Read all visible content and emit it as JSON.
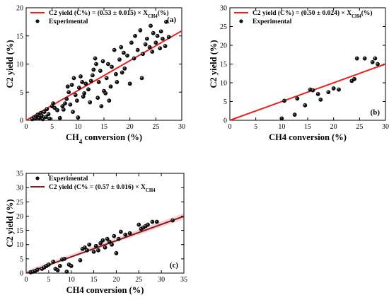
{
  "chart_data": [
    {
      "type": "scatter",
      "panel_label": "(a)",
      "xlabel": "CH",
      "xlabel_sub": "4",
      "xlabel_tail": " conversion (%)",
      "ylabel": "C2 yield (%)",
      "xlim": [
        0,
        30
      ],
      "ylim": [
        0,
        20
      ],
      "xticks": [
        0,
        5,
        10,
        15,
        20,
        25,
        30
      ],
      "yticks": [
        0,
        5,
        10,
        15,
        20
      ],
      "legend_position": "top-left",
      "fit": {
        "label": "C2 yield (C%) = (0.53 ± 0.015) × X",
        "label_sub": "CH4",
        "label_tail": "(%)",
        "slope": 0.53,
        "color": "#e8221f"
      },
      "scatter_label": "Experimental",
      "points": [
        [
          1.2,
          0.2
        ],
        [
          1.5,
          0.5
        ],
        [
          1.8,
          0.3
        ],
        [
          2.0,
          0.7
        ],
        [
          2.2,
          1.0
        ],
        [
          2.5,
          0.4
        ],
        [
          2.8,
          1.3
        ],
        [
          3.0,
          0.8
        ],
        [
          3.2,
          0.2
        ],
        [
          3.5,
          1.5
        ],
        [
          3.8,
          0.6
        ],
        [
          4.0,
          2.0
        ],
        [
          4.3,
          1.1
        ],
        [
          4.5,
          0.3
        ],
        [
          5.0,
          2.5
        ],
        [
          5.2,
          3.0
        ],
        [
          5.5,
          2.2
        ],
        [
          6.0,
          1.8
        ],
        [
          6.5,
          0.4
        ],
        [
          7.0,
          2.5
        ],
        [
          7.2,
          1.9
        ],
        [
          7.5,
          3.0
        ],
        [
          7.8,
          3.8
        ],
        [
          8.0,
          6.0
        ],
        [
          8.2,
          5.0
        ],
        [
          8.5,
          2.8
        ],
        [
          8.8,
          6.3
        ],
        [
          9.0,
          1.5
        ],
        [
          9.2,
          7.5
        ],
        [
          9.5,
          4.5
        ],
        [
          9.8,
          3.5
        ],
        [
          10.0,
          0.5
        ],
        [
          10.2,
          5.8
        ],
        [
          10.5,
          7.8
        ],
        [
          10.8,
          6.8
        ],
        [
          11.0,
          4.2
        ],
        [
          11.2,
          4.8
        ],
        [
          11.5,
          6.5
        ],
        [
          12.0,
          5.5
        ],
        [
          12.3,
          3.2
        ],
        [
          12.5,
          7.0
        ],
        [
          12.8,
          8.0
        ],
        [
          13.0,
          9.0
        ],
        [
          13.3,
          11.0
        ],
        [
          13.5,
          10.0
        ],
        [
          13.8,
          4.0
        ],
        [
          14.0,
          6.8
        ],
        [
          14.3,
          8.8
        ],
        [
          14.5,
          2.5
        ],
        [
          14.8,
          10.5
        ],
        [
          15.0,
          5.2
        ],
        [
          15.3,
          4.8
        ],
        [
          15.5,
          7.5
        ],
        [
          15.8,
          10.0
        ],
        [
          16.0,
          3.5
        ],
        [
          16.3,
          6.0
        ],
        [
          16.5,
          9.5
        ],
        [
          17.0,
          12.5
        ],
        [
          17.3,
          8.2
        ],
        [
          17.5,
          6.8
        ],
        [
          18.0,
          10.8
        ],
        [
          18.3,
          13.0
        ],
        [
          18.5,
          8.5
        ],
        [
          18.8,
          12.0
        ],
        [
          19.0,
          9.2
        ],
        [
          19.5,
          11.5
        ],
        [
          20.0,
          6.5
        ],
        [
          20.3,
          13.8
        ],
        [
          20.8,
          11.0
        ],
        [
          21.0,
          15.0
        ],
        [
          21.5,
          12.5
        ],
        [
          22.0,
          16.0
        ],
        [
          22.3,
          7.5
        ],
        [
          22.5,
          11.8
        ],
        [
          23.0,
          13.5
        ],
        [
          23.3,
          14.5
        ],
        [
          23.8,
          13.0
        ],
        [
          24.0,
          16.8
        ],
        [
          24.3,
          12.2
        ],
        [
          24.5,
          15.5
        ],
        [
          25.0,
          13.8
        ],
        [
          25.3,
          15.0
        ],
        [
          25.8,
          12.8
        ],
        [
          26.0,
          15.8
        ],
        [
          26.3,
          14.5
        ],
        [
          26.8,
          13.2
        ],
        [
          27.0,
          17.5
        ],
        [
          27.5,
          14.8
        ]
      ]
    },
    {
      "type": "scatter",
      "panel_label": "(b)",
      "xlabel": "CH4 conversion (%)",
      "ylabel": "C2 yield (%)",
      "xlim": [
        0,
        30
      ],
      "ylim": [
        0,
        30
      ],
      "xticks": [
        0,
        5,
        10,
        15,
        20,
        25,
        30
      ],
      "yticks": [
        0,
        5,
        10,
        15,
        20,
        25,
        30
      ],
      "legend_position": "top-left",
      "fit": {
        "label": "C2 yield (C%) = (0.50 ± 0.024) × X",
        "label_sub": "CH4",
        "label_tail": "(%)",
        "slope": 0.5,
        "color": "#e8221f"
      },
      "scatter_label": "Experimental",
      "points": [
        [
          10.0,
          0.5
        ],
        [
          10.5,
          5.2
        ],
        [
          12.5,
          1.5
        ],
        [
          13.0,
          5.8
        ],
        [
          14.5,
          4.0
        ],
        [
          15.5,
          8.2
        ],
        [
          16.0,
          8.0
        ],
        [
          17.0,
          7.0
        ],
        [
          17.5,
          5.5
        ],
        [
          19.0,
          7.5
        ],
        [
          20.0,
          8.5
        ],
        [
          21.0,
          8.2
        ],
        [
          23.5,
          10.5
        ],
        [
          24.0,
          11.0
        ],
        [
          24.5,
          16.5
        ],
        [
          26.0,
          16.5
        ],
        [
          27.5,
          15.5
        ],
        [
          28.0,
          16.5
        ],
        [
          28.5,
          15.0
        ]
      ]
    },
    {
      "type": "scatter",
      "panel_label": "(c)",
      "xlabel": "CH4 conversion (%)",
      "ylabel": "C2 yield (%)",
      "xlim": [
        0,
        35
      ],
      "ylim": [
        0,
        35
      ],
      "xticks": [
        0,
        5,
        10,
        15,
        20,
        25,
        30,
        35
      ],
      "yticks": [
        0,
        5,
        10,
        15,
        20,
        25,
        30,
        35
      ],
      "legend_position": "top-left",
      "fit": {
        "label": "C2 yield (C% = (0.57 ± 0.016) × X",
        "label_sub": "CH4",
        "label_tail": "",
        "slope": 0.57,
        "color": "#8b1a1a"
      },
      "scatter_label": "Experimental",
      "points": [
        [
          1.0,
          0.3
        ],
        [
          1.5,
          0.5
        ],
        [
          2.0,
          0.8
        ],
        [
          2.5,
          1.2
        ],
        [
          3.5,
          1.5
        ],
        [
          4.0,
          2.0
        ],
        [
          4.5,
          2.5
        ],
        [
          5.0,
          3.0
        ],
        [
          6.0,
          4.0
        ],
        [
          6.5,
          1.5
        ],
        [
          7.0,
          1.0
        ],
        [
          7.5,
          2.5
        ],
        [
          8.0,
          4.8
        ],
        [
          8.5,
          5.0
        ],
        [
          9.0,
          0.5
        ],
        [
          9.5,
          3.0
        ],
        [
          10.0,
          2.5
        ],
        [
          12.0,
          4.5
        ],
        [
          12.5,
          8.5
        ],
        [
          13.0,
          9.0
        ],
        [
          13.5,
          8.0
        ],
        [
          14.0,
          10.0
        ],
        [
          15.0,
          7.5
        ],
        [
          15.5,
          9.5
        ],
        [
          16.0,
          8.0
        ],
        [
          16.5,
          10.5
        ],
        [
          17.0,
          11.5
        ],
        [
          17.5,
          9.0
        ],
        [
          18.0,
          12.0
        ],
        [
          18.5,
          11.0
        ],
        [
          19.0,
          10.0
        ],
        [
          19.5,
          13.0
        ],
        [
          20.0,
          7.0
        ],
        [
          20.5,
          12.0
        ],
        [
          21.0,
          14.5
        ],
        [
          22.0,
          13.5
        ],
        [
          23.0,
          14.0
        ],
        [
          25.0,
          17.0
        ],
        [
          25.5,
          15.5
        ],
        [
          26.0,
          16.0
        ],
        [
          26.5,
          16.5
        ],
        [
          27.0,
          17.0
        ],
        [
          28.0,
          18.0
        ],
        [
          29.0,
          18.0
        ],
        [
          32.5,
          18.5
        ]
      ]
    }
  ]
}
